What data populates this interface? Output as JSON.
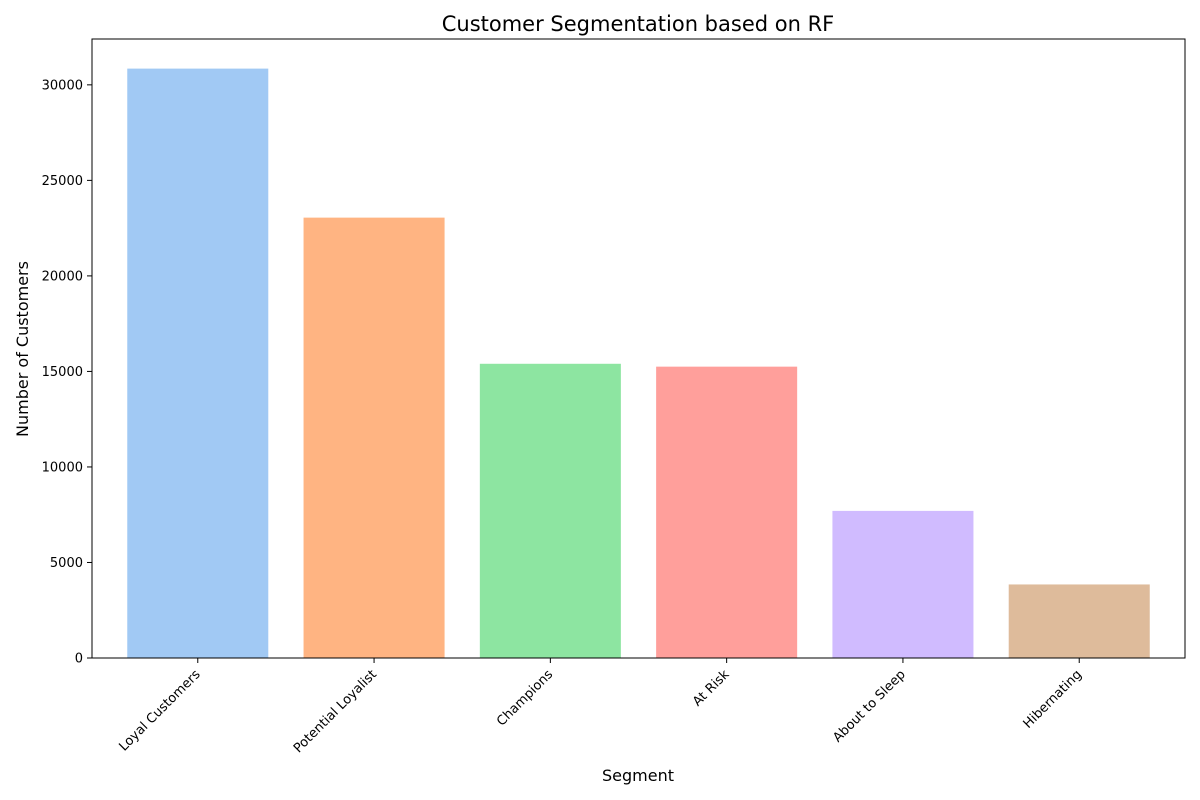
{
  "chart_data": {
    "type": "bar",
    "title": "Customer Segmentation based on RF",
    "xlabel": "Segment",
    "ylabel": "Number of Customers",
    "categories": [
      "Loyal Customers",
      "Potential Loyalist",
      "Champions",
      "At Risk",
      "About to Sleep",
      "Hibernating"
    ],
    "values": [
      30850,
      23050,
      15400,
      15250,
      7700,
      3850
    ],
    "colors": [
      "#a1c9f4",
      "#ffb482",
      "#8de5a1",
      "#ff9f9b",
      "#d0bbff",
      "#debb9b"
    ],
    "yticks": [
      0,
      5000,
      10000,
      15000,
      20000,
      25000,
      30000
    ],
    "ylim": [
      0,
      32400
    ],
    "grid": false,
    "legend": "none",
    "xtick_rotation": 45
  }
}
